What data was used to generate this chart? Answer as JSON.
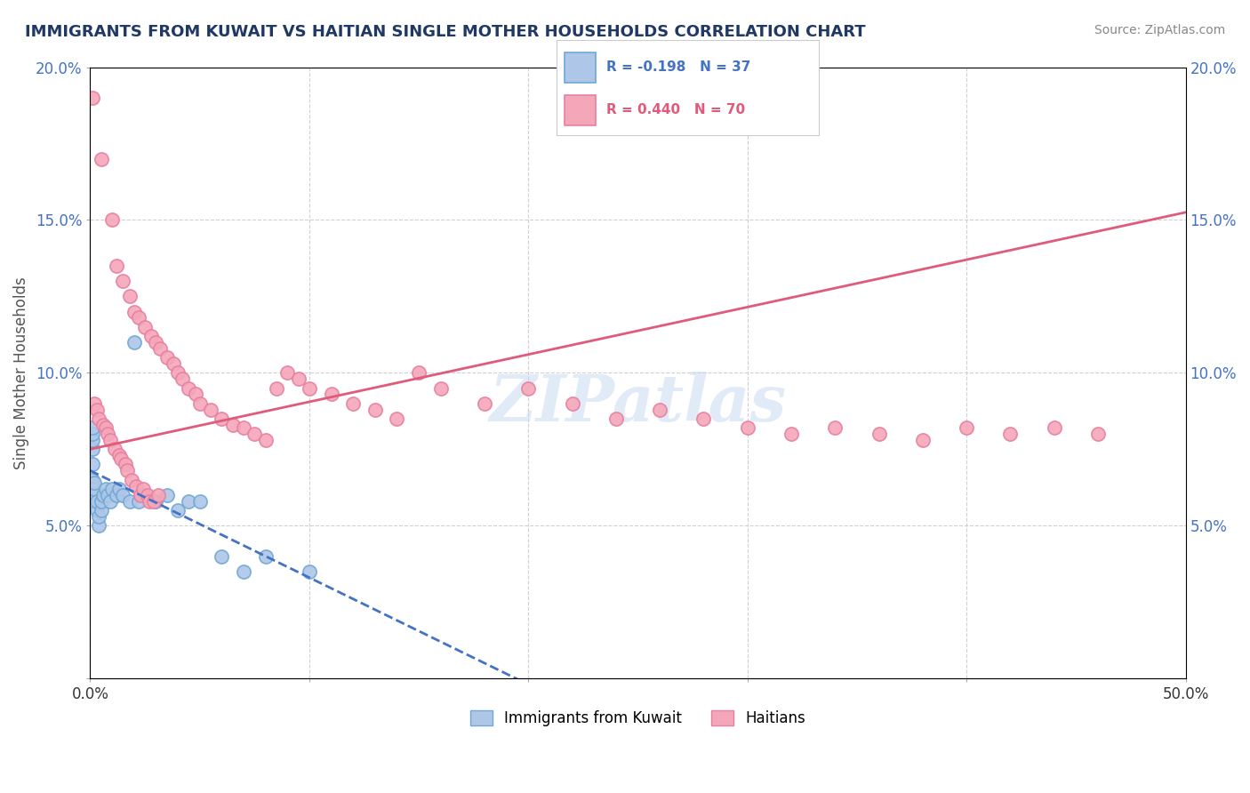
{
  "title": "IMMIGRANTS FROM KUWAIT VS HAITIAN SINGLE MOTHER HOUSEHOLDS CORRELATION CHART",
  "source": "Source: ZipAtlas.com",
  "xlabel": "",
  "ylabel": "Single Mother Households",
  "xlim": [
    0.0,
    0.5
  ],
  "ylim": [
    0.0,
    0.2
  ],
  "x_ticks": [
    0.0,
    0.1,
    0.2,
    0.3,
    0.4,
    0.5
  ],
  "x_tick_labels": [
    "0.0%",
    "",
    "",
    "",
    "",
    "50.0%"
  ],
  "y_ticks": [
    0.0,
    0.05,
    0.1,
    0.15,
    0.2
  ],
  "y_tick_labels": [
    "",
    "5.0%",
    "10.0%",
    "15.0%",
    "20.0%"
  ],
  "kuwait_color": "#aec6e8",
  "haitian_color": "#f4a7b9",
  "kuwait_edge_color": "#6fa8d4",
  "haitian_edge_color": "#e87fa0",
  "kuwait_R": -0.198,
  "kuwait_N": 37,
  "haitian_R": 0.44,
  "haitian_N": 70,
  "kuwait_line_color": "#4472c4",
  "haitian_line_color": "#e05a7a",
  "kuwait_line_dash": [
    4,
    3
  ],
  "haitian_line_solid": true,
  "watermark": "ZIPatlas",
  "watermark_color": "#c5d8f0",
  "legend_box_kuwait_color": "#aec6e8",
  "legend_box_haitian_color": "#f4a7b9",
  "legend_text_kuwait": "R = -0.198   N = 37",
  "legend_text_haitian": "R = 0.440   N = 70",
  "kuwait_x": [
    0.001,
    0.001,
    0.001,
    0.001,
    0.001,
    0.001,
    0.001,
    0.002,
    0.002,
    0.002,
    0.003,
    0.003,
    0.004,
    0.004,
    0.005,
    0.005,
    0.006,
    0.007,
    0.008,
    0.009,
    0.01,
    0.012,
    0.013,
    0.015,
    0.018,
    0.02,
    0.022,
    0.025,
    0.03,
    0.035,
    0.04,
    0.045,
    0.05,
    0.06,
    0.07,
    0.08,
    0.1
  ],
  "kuwait_y": [
    0.06,
    0.065,
    0.07,
    0.075,
    0.078,
    0.08,
    0.082,
    0.06,
    0.062,
    0.064,
    0.055,
    0.058,
    0.05,
    0.053,
    0.055,
    0.058,
    0.06,
    0.062,
    0.06,
    0.058,
    0.062,
    0.06,
    0.062,
    0.06,
    0.058,
    0.11,
    0.058,
    0.06,
    0.058,
    0.06,
    0.055,
    0.058,
    0.058,
    0.04,
    0.035,
    0.04,
    0.035
  ],
  "haitian_x": [
    0.001,
    0.005,
    0.01,
    0.012,
    0.015,
    0.018,
    0.02,
    0.022,
    0.025,
    0.028,
    0.03,
    0.032,
    0.035,
    0.038,
    0.04,
    0.042,
    0.045,
    0.048,
    0.05,
    0.055,
    0.06,
    0.065,
    0.07,
    0.075,
    0.08,
    0.085,
    0.09,
    0.095,
    0.1,
    0.11,
    0.12,
    0.13,
    0.14,
    0.15,
    0.16,
    0.18,
    0.2,
    0.22,
    0.24,
    0.26,
    0.28,
    0.3,
    0.32,
    0.34,
    0.36,
    0.38,
    0.4,
    0.42,
    0.44,
    0.46,
    0.002,
    0.003,
    0.004,
    0.006,
    0.007,
    0.008,
    0.009,
    0.011,
    0.013,
    0.014,
    0.016,
    0.017,
    0.019,
    0.021,
    0.023,
    0.024,
    0.026,
    0.027,
    0.029,
    0.031
  ],
  "haitian_y": [
    0.19,
    0.17,
    0.15,
    0.135,
    0.13,
    0.125,
    0.12,
    0.118,
    0.115,
    0.112,
    0.11,
    0.108,
    0.105,
    0.103,
    0.1,
    0.098,
    0.095,
    0.093,
    0.09,
    0.088,
    0.085,
    0.083,
    0.082,
    0.08,
    0.078,
    0.095,
    0.1,
    0.098,
    0.095,
    0.093,
    0.09,
    0.088,
    0.085,
    0.1,
    0.095,
    0.09,
    0.095,
    0.09,
    0.085,
    0.088,
    0.085,
    0.082,
    0.08,
    0.082,
    0.08,
    0.078,
    0.082,
    0.08,
    0.082,
    0.08,
    0.09,
    0.088,
    0.085,
    0.083,
    0.082,
    0.08,
    0.078,
    0.075,
    0.073,
    0.072,
    0.07,
    0.068,
    0.065,
    0.063,
    0.06,
    0.062,
    0.06,
    0.058,
    0.058,
    0.06
  ],
  "background_color": "#ffffff",
  "grid_color": "#d0d0d0",
  "title_color": "#1f3864",
  "source_color": "#888888",
  "axis_label_color": "#555555"
}
